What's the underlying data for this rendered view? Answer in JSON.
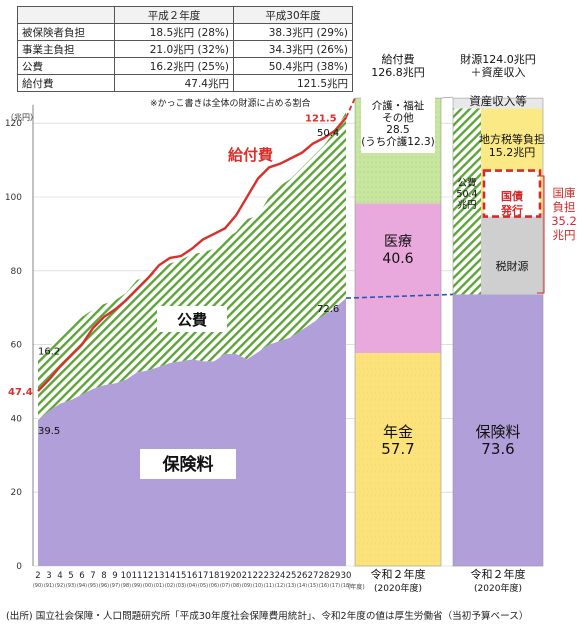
{
  "summary_table": {
    "headers": [
      "",
      "平成２年度",
      "平成30年度"
    ],
    "rows": [
      [
        "被保険者負担",
        "18.5兆円 (28%)",
        "38.3兆円 (29%)"
      ],
      [
        "事業主負担",
        "21.0兆円 (32%)",
        "34.3兆円 (26%)"
      ],
      [
        "公費",
        "16.2兆円 (25%)",
        "50.4兆円 (38%)"
      ],
      [
        "給付費",
        "47.4兆円",
        "121.5兆円"
      ]
    ],
    "note": "※かっこ書きは全体の財源に占める割合"
  },
  "source": "(出所) 国立社会保障・人口問題研究所「平成30年度社会保障費用統計」、令和2年度の値は厚生労働省（当初予算ベース）",
  "colors": {
    "premium": "#b09fd8",
    "public_hatch": "#5fa43a",
    "benefit_line": "#d9302c",
    "pension": "#fbe27a",
    "medical": "#eaa9dc",
    "care": "#c8e6a0",
    "local_tax": "#fbe985",
    "national_bond_box": "#d42a2a",
    "asset_income": "#e8e8e8",
    "dashed_link": "#2a55b8",
    "gridline": "#cccccc"
  },
  "chart_data": {
    "type": "area",
    "yunit_label": "（兆円）",
    "ylim": [
      0,
      125
    ],
    "yticks": [
      0,
      20,
      40,
      60,
      80,
      100,
      120
    ],
    "xlabel": "(年度)",
    "x": [
      "2",
      "3",
      "4",
      "5",
      "6",
      "7",
      "8",
      "9",
      "10",
      "11",
      "12",
      "13",
      "14",
      "15",
      "16",
      "17",
      "18",
      "19",
      "20",
      "21",
      "22",
      "23",
      "24",
      "25",
      "26",
      "27",
      "28",
      "29",
      "30"
    ],
    "x_era": [
      "(90)",
      "(91)",
      "(92)",
      "(93)",
      "(94)",
      "(95)",
      "(96)",
      "(97)",
      "(98)",
      "(99)",
      "(00)",
      "(01)",
      "(02)",
      "(03)",
      "(04)",
      "(05)",
      "(06)",
      "(07)",
      "(08)",
      "(09)",
      "(10)",
      "(11)",
      "(12)",
      "(13)",
      "(14)",
      "(15)",
      "(16)",
      "(17)",
      "(18)"
    ],
    "series": [
      {
        "name": "保険料",
        "values": [
          39.5,
          42,
          44,
          45,
          46.5,
          48,
          49,
          49.5,
          50.5,
          52.5,
          53,
          54,
          55,
          55.5,
          56,
          55.5,
          55.5,
          57.5,
          57.5,
          56,
          58,
          60,
          61,
          62,
          64,
          66,
          68,
          70,
          72.6
        ]
      },
      {
        "name": "公費",
        "values": [
          16.2,
          17,
          18.5,
          20,
          21,
          21.5,
          22,
          22.5,
          23.5,
          25,
          25.5,
          26,
          27,
          27.5,
          28.5,
          29.5,
          30.5,
          31,
          33,
          38,
          37,
          40,
          42,
          43,
          44,
          45,
          46,
          48,
          50.4
        ]
      },
      {
        "name": "給付費",
        "values": [
          47.4,
          50.5,
          54,
          57,
          60,
          64.5,
          67.5,
          69.5,
          72,
          75,
          78,
          81.5,
          83.5,
          84,
          86,
          88.5,
          90,
          91.5,
          95,
          100,
          105,
          108,
          109,
          110.5,
          112,
          114.5,
          116,
          118,
          121.5
        ]
      }
    ],
    "labels": {
      "benefit": "給付費",
      "public": "公費",
      "premium": "保険料",
      "start_total": "47.4",
      "start_public": "16.2",
      "start_premium": "39.5",
      "end_total": "121.5",
      "end_public": "50.4",
      "end_premium": "72.6"
    },
    "benefit_bar": {
      "header": [
        "給付費",
        "126.8兆円"
      ],
      "xlabel": "令和２年度",
      "xsub": "(2020年度)",
      "segments": [
        {
          "name": "年金",
          "value": 57.7,
          "label": [
            "年金",
            "57.7"
          ]
        },
        {
          "name": "医療",
          "value": 40.6,
          "label": [
            "医療",
            "40.6"
          ]
        },
        {
          "name": "介護・福祉その他",
          "value": 28.5,
          "label": [
            "介護・福祉",
            "その他",
            "28.5",
            "(うち介護12.3)"
          ]
        }
      ]
    },
    "revenue_bar": {
      "header": [
        "財源124.0兆円",
        "＋資産収入"
      ],
      "xlabel": "令和２年度",
      "xsub": "(2020年度)",
      "premium": {
        "value": 73.6,
        "label": [
          "保険料",
          "73.6"
        ]
      },
      "public_total": {
        "value": 50.4,
        "label": [
          "公費",
          "50.4",
          "兆円"
        ]
      },
      "local_tax": {
        "value": 15.2,
        "label": [
          "地方税等負担",
          "15.2兆円"
        ]
      },
      "national_bond_label": [
        "国債",
        "発行"
      ],
      "tax_label": "税財源",
      "asset_label": "資産収入等",
      "national_treasury": {
        "value": 35.2,
        "label": [
          "国庫",
          "負担",
          "35.2",
          "兆円"
        ]
      }
    }
  }
}
